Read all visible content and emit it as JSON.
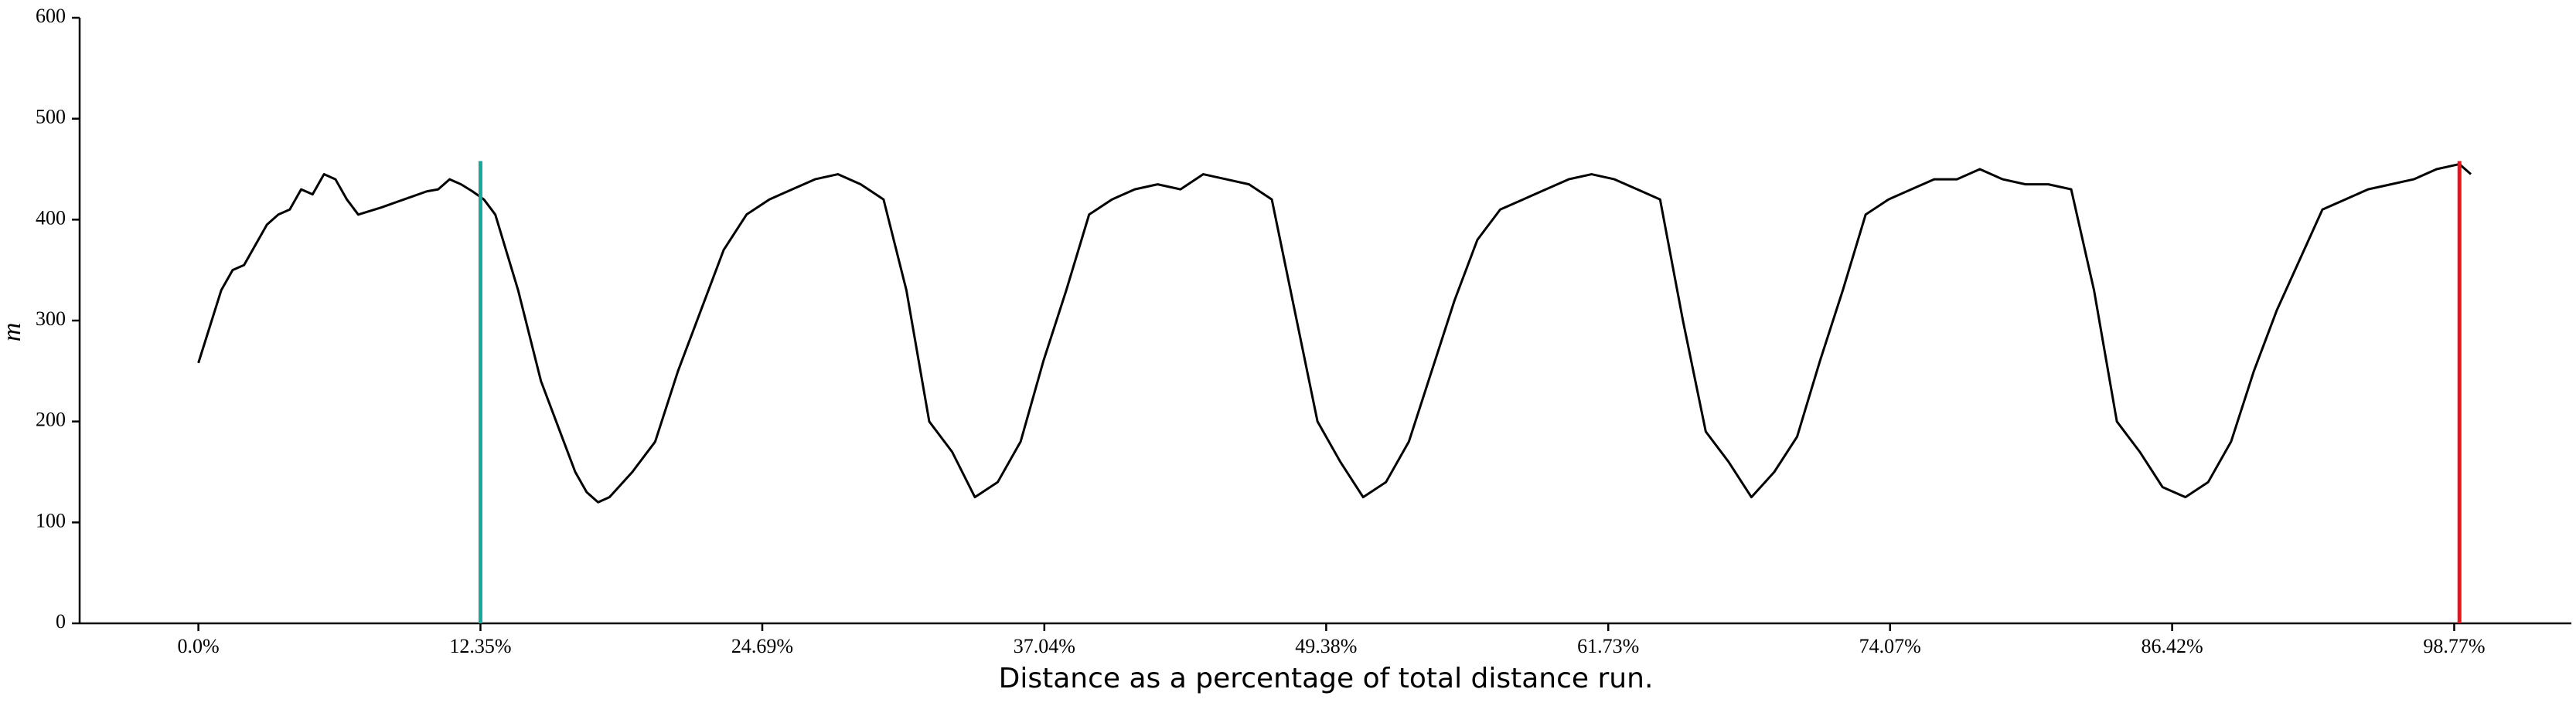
{
  "chart_data": {
    "type": "line",
    "xlabel": "Distance as a percentage of total distance run.",
    "ylabel": "m",
    "xlim": [
      -5.2,
      103.9
    ],
    "ylim": [
      0,
      600
    ],
    "yticks": [
      0,
      100,
      200,
      300,
      400,
      500,
      600
    ],
    "xticks": [
      {
        "value": 0,
        "label": "0.0%"
      },
      {
        "value": 12.35,
        "label": "12.35%"
      },
      {
        "value": 24.69,
        "label": "24.69%"
      },
      {
        "value": 37.04,
        "label": "37.04%"
      },
      {
        "value": 49.38,
        "label": "49.38%"
      },
      {
        "value": 61.73,
        "label": "61.73%"
      },
      {
        "value": 74.07,
        "label": "74.07%"
      },
      {
        "value": 86.42,
        "label": "86.42%"
      },
      {
        "value": 98.77,
        "label": "98.77%"
      }
    ],
    "color": "#000000",
    "x": [
      0,
      1,
      1.5,
      2,
      3,
      3.5,
      4,
      4.5,
      5,
      5.5,
      6,
      6.5,
      7,
      8,
      9,
      10,
      10.5,
      11,
      11.5,
      12,
      12.5,
      13,
      14,
      15,
      16,
      16.5,
      17,
      17.5,
      18,
      19,
      20,
      21,
      22,
      23,
      24,
      25,
      26,
      27,
      28,
      29,
      30,
      31,
      32,
      33,
      34,
      35,
      36,
      37,
      38,
      39,
      40,
      41,
      42,
      43,
      44,
      45,
      46,
      47,
      48,
      49,
      50,
      51,
      52,
      53,
      54,
      55,
      56,
      57,
      58,
      59,
      60,
      61,
      62,
      63,
      64,
      65,
      66,
      67,
      68,
      69,
      70,
      71,
      72,
      73,
      74,
      75,
      76,
      77,
      78,
      79,
      80,
      81,
      82,
      83,
      84,
      85,
      86,
      87,
      88,
      89,
      90,
      91,
      92,
      93,
      94,
      95,
      96,
      97,
      98,
      99,
      99.5
    ],
    "values": [
      258,
      330,
      350,
      355,
      395,
      405,
      410,
      430,
      425,
      445,
      440,
      420,
      405,
      412,
      420,
      428,
      430,
      440,
      435,
      428,
      420,
      405,
      330,
      240,
      180,
      150,
      130,
      120,
      125,
      150,
      180,
      250,
      310,
      370,
      405,
      420,
      430,
      440,
      445,
      435,
      420,
      330,
      200,
      170,
      125,
      140,
      180,
      260,
      330,
      405,
      420,
      430,
      435,
      430,
      445,
      440,
      435,
      420,
      310,
      200,
      160,
      125,
      140,
      180,
      250,
      320,
      380,
      410,
      420,
      430,
      440,
      445,
      440,
      430,
      420,
      300,
      190,
      160,
      125,
      150,
      185,
      260,
      330,
      405,
      420,
      430,
      440,
      440,
      450,
      440,
      435,
      435,
      430,
      330,
      200,
      170,
      135,
      125,
      140,
      180,
      250,
      310,
      360,
      410,
      420,
      430,
      435,
      440,
      450,
      455,
      445
    ],
    "vlines": [
      {
        "x": 12.35,
        "y": [
          0,
          458
        ],
        "color": "#1aa89c"
      },
      {
        "x": 99,
        "y": [
          0,
          458
        ],
        "color": "#e8141b"
      }
    ]
  }
}
